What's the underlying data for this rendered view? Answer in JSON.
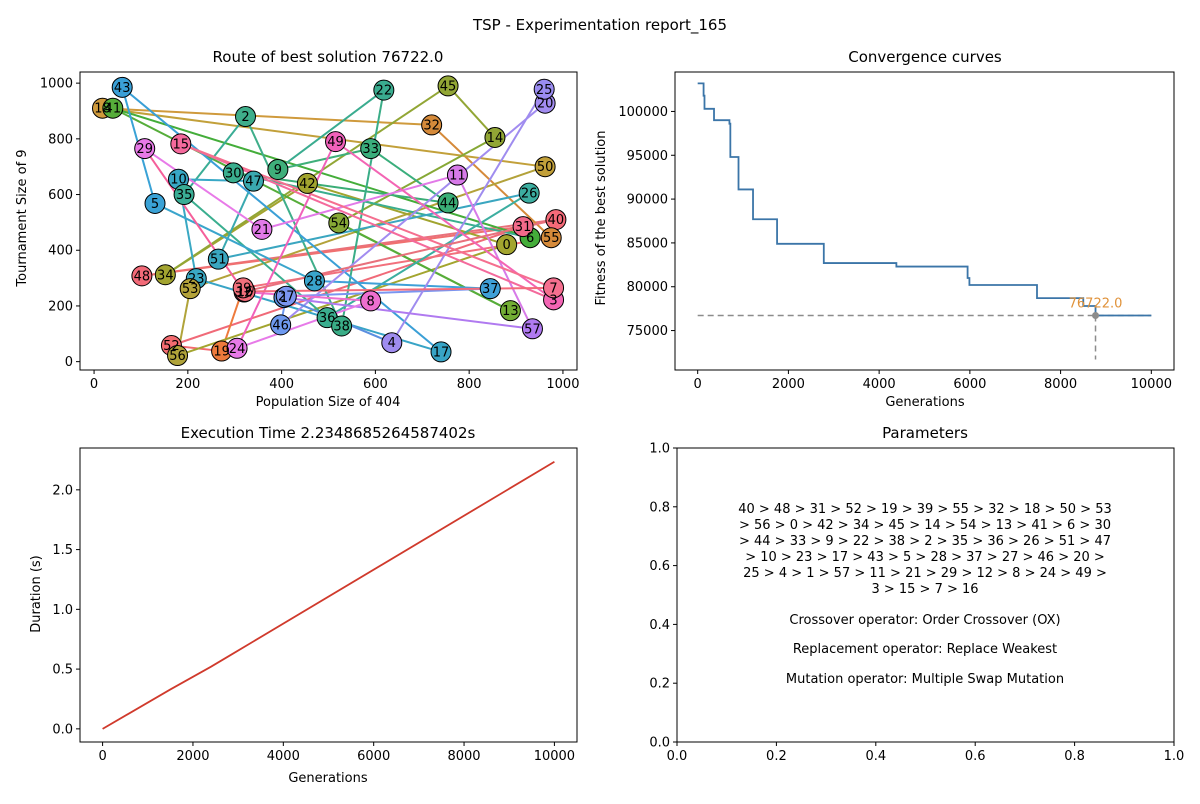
{
  "suptitle": "TSP - Experimentation report_165",
  "chart_data": [
    {
      "type": "scatter",
      "title": "Route of best solution 76722.0",
      "xlabel": "Population Size of 404",
      "ylabel": "Tournament Size of 9",
      "xlim": [
        -30,
        1030
      ],
      "ylim": [
        -30,
        1040
      ],
      "xticks": [
        0,
        200,
        400,
        600,
        800,
        1000
      ],
      "yticks": [
        0,
        200,
        400,
        600,
        800,
        1000
      ],
      "cities": [
        {
          "id": 0,
          "x": 880,
          "y": 420,
          "color": "#a3a52f"
        },
        {
          "id": 1,
          "x": 405,
          "y": 230,
          "color": "#5b8fe0"
        },
        {
          "id": 2,
          "x": 323,
          "y": 880,
          "color": "#3fae8a"
        },
        {
          "id": 3,
          "x": 980,
          "y": 222,
          "color": "#f365b4"
        },
        {
          "id": 4,
          "x": 635,
          "y": 68,
          "color": "#9f8cef"
        },
        {
          "id": 5,
          "x": 130,
          "y": 568,
          "color": "#3aa2d6"
        },
        {
          "id": 6,
          "x": 930,
          "y": 445,
          "color": "#44ad3a"
        },
        {
          "id": 7,
          "x": 980,
          "y": 265,
          "color": "#f56f8f"
        },
        {
          "id": 8,
          "x": 590,
          "y": 218,
          "color": "#ee6fd0"
        },
        {
          "id": 9,
          "x": 392,
          "y": 690,
          "color": "#3faf7a"
        },
        {
          "id": 10,
          "x": 180,
          "y": 655,
          "color": "#38a8c6"
        },
        {
          "id": 11,
          "x": 775,
          "y": 670,
          "color": "#d77ae8"
        },
        {
          "id": 12,
          "x": 320,
          "y": 250,
          "color": "#f55f9a"
        },
        {
          "id": 13,
          "x": 888,
          "y": 183,
          "color": "#73ad35"
        },
        {
          "id": 14,
          "x": 855,
          "y": 805,
          "color": "#92a635"
        },
        {
          "id": 15,
          "x": 185,
          "y": 782,
          "color": "#f46a9c"
        },
        {
          "id": 16,
          "x": 322,
          "y": 252,
          "color": "#f36b7a"
        },
        {
          "id": 17,
          "x": 740,
          "y": 35,
          "color": "#38a4c6"
        },
        {
          "id": 18,
          "x": 18,
          "y": 910,
          "color": "#cf9a3c"
        },
        {
          "id": 19,
          "x": 272,
          "y": 38,
          "color": "#ee7a3c"
        },
        {
          "id": 20,
          "x": 962,
          "y": 928,
          "color": "#a28cf0"
        },
        {
          "id": 21,
          "x": 358,
          "y": 475,
          "color": "#e27ae8"
        },
        {
          "id": 22,
          "x": 618,
          "y": 975,
          "color": "#3aac8f"
        },
        {
          "id": 23,
          "x": 218,
          "y": 298,
          "color": "#3aa8c3"
        },
        {
          "id": 24,
          "x": 305,
          "y": 48,
          "color": "#e77ae8"
        },
        {
          "id": 25,
          "x": 960,
          "y": 978,
          "color": "#9a8cf0"
        },
        {
          "id": 26,
          "x": 928,
          "y": 605,
          "color": "#3caea0"
        },
        {
          "id": 27,
          "x": 410,
          "y": 235,
          "color": "#7b95f0"
        },
        {
          "id": 28,
          "x": 470,
          "y": 290,
          "color": "#3aa5cc"
        },
        {
          "id": 29,
          "x": 108,
          "y": 765,
          "color": "#e87ae8"
        },
        {
          "id": 30,
          "x": 297,
          "y": 678,
          "color": "#3aae8e"
        },
        {
          "id": 31,
          "x": 915,
          "y": 485,
          "color": "#f26a8a"
        },
        {
          "id": 32,
          "x": 720,
          "y": 850,
          "color": "#d58a3a"
        },
        {
          "id": 33,
          "x": 590,
          "y": 765,
          "color": "#3aae7c"
        },
        {
          "id": 34,
          "x": 152,
          "y": 312,
          "color": "#a3a430"
        },
        {
          "id": 35,
          "x": 192,
          "y": 600,
          "color": "#3aad95"
        },
        {
          "id": 36,
          "x": 497,
          "y": 158,
          "color": "#3aae8f"
        },
        {
          "id": 37,
          "x": 845,
          "y": 262,
          "color": "#3fa0d8"
        },
        {
          "id": 38,
          "x": 528,
          "y": 128,
          "color": "#3aad87"
        },
        {
          "id": 39,
          "x": 318,
          "y": 265,
          "color": "#f2707c"
        },
        {
          "id": 40,
          "x": 985,
          "y": 510,
          "color": "#f56a78"
        },
        {
          "id": 41,
          "x": 40,
          "y": 910,
          "color": "#56ad3a"
        },
        {
          "id": 42,
          "x": 455,
          "y": 640,
          "color": "#a1a42f"
        },
        {
          "id": 43,
          "x": 60,
          "y": 985,
          "color": "#3a9fd6"
        },
        {
          "id": 44,
          "x": 755,
          "y": 570,
          "color": "#3aad76"
        },
        {
          "id": 45,
          "x": 755,
          "y": 990,
          "color": "#92a635"
        },
        {
          "id": 46,
          "x": 398,
          "y": 132,
          "color": "#6e99ef"
        },
        {
          "id": 47,
          "x": 340,
          "y": 648,
          "color": "#3aa9b0"
        },
        {
          "id": 48,
          "x": 102,
          "y": 308,
          "color": "#f26a78"
        },
        {
          "id": 49,
          "x": 515,
          "y": 790,
          "color": "#f161ba"
        },
        {
          "id": 50,
          "x": 962,
          "y": 700,
          "color": "#c2a03a"
        },
        {
          "id": 51,
          "x": 265,
          "y": 368,
          "color": "#3aa6c0"
        },
        {
          "id": 52,
          "x": 165,
          "y": 58,
          "color": "#f36b70"
        },
        {
          "id": 53,
          "x": 205,
          "y": 262,
          "color": "#b3a23a"
        },
        {
          "id": 54,
          "x": 522,
          "y": 498,
          "color": "#86a835"
        },
        {
          "id": 55,
          "x": 975,
          "y": 445,
          "color": "#d58a3a"
        },
        {
          "id": 56,
          "x": 178,
          "y": 22,
          "color": "#b0a33a"
        },
        {
          "id": 57,
          "x": 935,
          "y": 118,
          "color": "#b07af0"
        }
      ],
      "route": [
        40,
        48,
        31,
        52,
        19,
        39,
        55,
        32,
        18,
        50,
        53,
        56,
        0,
        42,
        34,
        45,
        14,
        54,
        13,
        41,
        6,
        30,
        44,
        33,
        9,
        22,
        38,
        2,
        35,
        36,
        26,
        51,
        47,
        10,
        23,
        17,
        43,
        5,
        28,
        37,
        27,
        46,
        20,
        25,
        4,
        1,
        57,
        11,
        21,
        29,
        12,
        8,
        24,
        49,
        3,
        15,
        7,
        16
      ],
      "segment_colors": [
        "#e8717c",
        "#f07070",
        "#f06a78",
        "#f36b70",
        "#ee7a3c",
        "#f2707c",
        "#d58a3a",
        "#cf9a3c",
        "#c2a03a",
        "#b3a23a",
        "#b0a33a",
        "#a3a52f",
        "#a1a42f",
        "#a3a430",
        "#92a635",
        "#92a635",
        "#86a835",
        "#73ad35",
        "#56ad3a",
        "#44ad3a",
        "#3aae8e",
        "#3aad76",
        "#3aae7c",
        "#3faf7a",
        "#3aac8f",
        "#3aad87",
        "#3fae8a",
        "#3aad95",
        "#3aae8f",
        "#3caea0",
        "#3aa6c0",
        "#3aa9b0",
        "#38a8c6",
        "#3aa8c3",
        "#38a4c6",
        "#3a9fd6",
        "#3aa2d6",
        "#3aa5cc",
        "#3fa0d8",
        "#7b95f0",
        "#6e99ef",
        "#a28cf0",
        "#9a8cf0",
        "#9f8cef",
        "#5b8fe0",
        "#b07af0",
        "#d77ae8",
        "#e27ae8",
        "#e87ae8",
        "#f55f9a",
        "#ee6fd0",
        "#e77ae8",
        "#f161ba",
        "#f365b4",
        "#f46a9c",
        "#f56f8f",
        "#f36b7a",
        "#e8717c"
      ]
    },
    {
      "type": "line",
      "title": "Convergence curves",
      "xlabel": "Generations",
      "ylabel": "Fitness of the best solution",
      "xlim": [
        -500,
        10500
      ],
      "ylim": [
        70500,
        104500
      ],
      "xticks": [
        0,
        2000,
        4000,
        6000,
        8000,
        10000
      ],
      "yticks": [
        75000,
        80000,
        85000,
        90000,
        95000,
        100000
      ],
      "line_color": "#3b75a8",
      "steps": [
        [
          0,
          103200
        ],
        [
          130,
          101800
        ],
        [
          150,
          100300
        ],
        [
          360,
          99000
        ],
        [
          700,
          98600
        ],
        [
          720,
          94800
        ],
        [
          900,
          91100
        ],
        [
          1220,
          87700
        ],
        [
          1750,
          84900
        ],
        [
          2780,
          82700
        ],
        [
          4380,
          82300
        ],
        [
          5950,
          81000
        ],
        [
          5990,
          80200
        ],
        [
          7480,
          78700
        ],
        [
          8500,
          77800
        ],
        [
          8770,
          76722
        ],
        [
          10000,
          76722
        ]
      ],
      "best_value": 76722.0,
      "best_label": "76722.0",
      "best_generation": 8770,
      "hline_color": "#8c8c8c",
      "marker_color": "#8c8c8c",
      "annotation_color": "#e0923a"
    },
    {
      "type": "line",
      "title": "Execution Time 2.2348685264587402s",
      "xlabel": "Generations",
      "ylabel": "Duration (s)",
      "xlim": [
        -500,
        10500
      ],
      "ylim": [
        -0.11,
        2.35
      ],
      "xticks": [
        0,
        2000,
        4000,
        6000,
        8000,
        10000
      ],
      "yticks": [
        0.0,
        0.5,
        1.0,
        1.5,
        2.0
      ],
      "line_color": "#d03a2c",
      "points": [
        [
          0,
          0
        ],
        [
          1500,
          0.33
        ],
        [
          2400,
          0.52
        ],
        [
          2800,
          0.61
        ],
        [
          10000,
          2.2348685264587402
        ]
      ]
    }
  ],
  "params_panel": {
    "title": "Parameters",
    "xlim": [
      0,
      1
    ],
    "ylim": [
      0,
      1
    ],
    "xticks": [
      0.0,
      0.2,
      0.4,
      0.6,
      0.8,
      1.0
    ],
    "yticks": [
      0.0,
      0.2,
      0.4,
      0.6,
      0.8,
      1.0
    ],
    "route_lines": [
      "40 > 48 > 31 > 52 > 19 > 39 > 55 > 32 > 18 > 50 > 53",
      "> 56 > 0 > 42 > 34 > 45 > 14 > 54 > 13 > 41 > 6 > 30",
      "> 44 > 33 > 9 > 22 > 38 > 2 > 35 > 36 > 26 > 51 > 47",
      "> 10 > 23 > 17 > 43 > 5 > 28 > 37 > 27 > 46 > 20 >",
      "25 > 4 > 1 > 57 > 11 > 21 > 29 > 12 > 8 > 24 > 49 >",
      "3 > 15 > 7 > 16"
    ],
    "crossover": "Crossover operator: Order Crossover (OX)",
    "replacement": "Replacement operator: Replace Weakest",
    "mutation": "Mutation operator: Multiple Swap Mutation"
  }
}
